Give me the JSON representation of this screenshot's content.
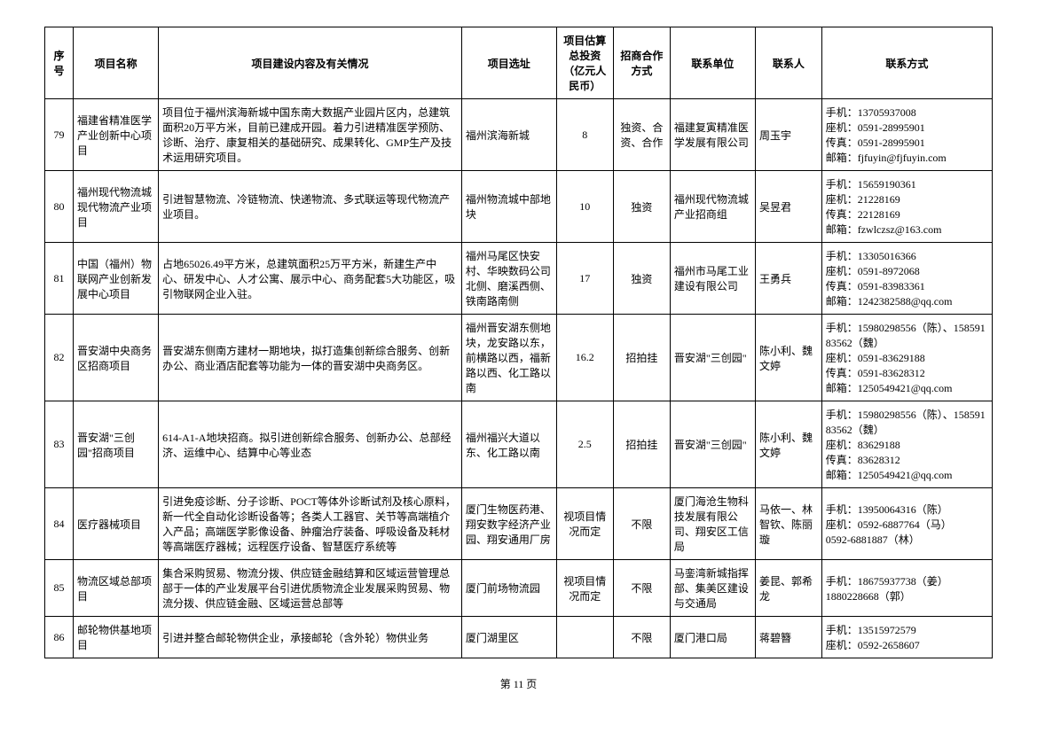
{
  "columns": [
    "序号",
    "项目名称",
    "项目建设内容及有关情况",
    "项目选址",
    "项目估算总投资（亿元人民币）",
    "招商合作方式",
    "联系单位",
    "联系人",
    "联系方式"
  ],
  "colWidths": [
    "3%",
    "9%",
    "32%",
    "10%",
    "6%",
    "6%",
    "9%",
    "7%",
    "18%"
  ],
  "rows": [
    {
      "no": "79",
      "name": "福建省精准医学产业创新中心项目",
      "content": "项目位于福州滨海新城中国东南大数据产业园片区内，总建筑面积20万平方米，目前已建成开园。着力引进精准医学预防、诊断、治疗、康复相关的基础研究、成果转化、GMP生产及技术运用研究项目。",
      "location": "福州滨海新城",
      "investment": "8",
      "mode": "独资、合资、合作",
      "unit": "福建复寅精准医学发展有限公司",
      "person": "周玉宇",
      "contact": [
        "手机：13705937008",
        "座机：0591-28995901",
        "传真：0591-28995901",
        "邮箱：fjfuyin@fjfuyin.com"
      ]
    },
    {
      "no": "80",
      "name": "福州现代物流城现代物流产业项目",
      "content": "引进智慧物流、冷链物流、快递物流、多式联运等现代物流产业项目。",
      "location": "福州物流城中部地块",
      "investment": "10",
      "mode": "独资",
      "unit": "福州现代物流城产业招商组",
      "person": "吴昱君",
      "contact": [
        "手机：15659190361",
        "座机：21228169",
        "传真：22128169",
        "邮箱：fzwlczsz@163.com"
      ]
    },
    {
      "no": "81",
      "name": "中国（福州）物联网产业创新发展中心项目",
      "content": "占地65026.49平方米，总建筑面积25万平方米，新建生产中心、研发中心、人才公寓、展示中心、商务配套5大功能区，吸引物联网企业入驻。",
      "location": "福州马尾区快安村、华映数码公司北侧、磨溪西侧、铁南路南侧",
      "investment": "17",
      "mode": "独资",
      "unit": "福州市马尾工业建设有限公司",
      "person": "王勇兵",
      "contact": [
        "手机：13305016366",
        "座机：0591-8972068",
        "传真：0591-83983361",
        "邮箱：1242382588@qq.com"
      ]
    },
    {
      "no": "82",
      "name": "晋安湖中央商务区招商项目",
      "content": "晋安湖东侧南方建材一期地块，拟打造集创新综合服务、创新办公、商业酒店配套等功能为一体的晋安湖中央商务区。",
      "location": "福州晋安湖东侧地块，龙安路以东，前横路以西，福新路以西、化工路以南",
      "investment": "16.2",
      "mode": "招拍挂",
      "unit": "晋安湖\"三创园\"",
      "person": "陈小利、魏文婷",
      "contact": [
        "手机：15980298556（陈）、15859183562（魏）",
        "座机：0591-83629188",
        "传真：0591-83628312",
        "邮箱：1250549421@qq.com"
      ]
    },
    {
      "no": "83",
      "name": "晋安湖\"三创园\"招商项目",
      "content": "614-A1-A地块招商。拟引进创新综合服务、创新办公、总部经济、运维中心、结算中心等业态",
      "location": "福州福兴大道以东、化工路以南",
      "investment": "2.5",
      "mode": "招拍挂",
      "unit": "晋安湖\"三创园\"",
      "person": "陈小利、魏文婷",
      "contact": [
        "手机：15980298556（陈）、15859183562（魏）",
        "座机：83629188",
        "传真：83628312",
        "邮箱：1250549421@qq.com"
      ]
    },
    {
      "no": "84",
      "name": "医疗器械项目",
      "content": "引进免疫诊断、分子诊断、POCT等体外诊断试剂及核心原料，新一代全自动化诊断设备等；各类人工器官、关节等高端植介入产品；高端医学影像设备、肿瘤治疗装备、呼吸设备及耗材等高端医疗器械；远程医疗设备、智慧医疗系统等",
      "location": "厦门生物医药港、翔安数字经济产业园、翔安通用厂房",
      "investment": "视项目情况而定",
      "mode": "不限",
      "unit": "厦门海沧生物科技发展有限公司、翔安区工信局",
      "person": "马依一、林智钦、陈丽璇",
      "contact": [
        "手机：13950064316（陈）",
        "座机：0592-6887764（马）",
        "0592-6881887（林）"
      ]
    },
    {
      "no": "85",
      "name": "物流区域总部项目",
      "content": "集合采购贸易、物流分拨、供应链金融结算和区域运营管理总部于一体的产业发展平台引进优质物流企业发展采购贸易、物流分拨、供应链金融、区域运营总部等",
      "location": "厦门前场物流园",
      "investment": "视项目情况而定",
      "mode": "不限",
      "unit": "马銮湾新城指挥部、集美区建设与交通局",
      "person": "姜昆、郭希龙",
      "contact": [
        "手机：18675937738（姜）",
        "1880228668（郭）"
      ]
    },
    {
      "no": "86",
      "name": "邮轮物供基地项目",
      "content": "引进并整合邮轮物供企业，承接邮轮（含外轮）物供业务",
      "location": "厦门湖里区",
      "investment": "",
      "mode": "不限",
      "unit": "厦门港口局",
      "person": "蒋碧簪",
      "contact": [
        "手机：13515972579",
        "座机：0592-2658607"
      ]
    }
  ],
  "pageNum": "第 11 页"
}
